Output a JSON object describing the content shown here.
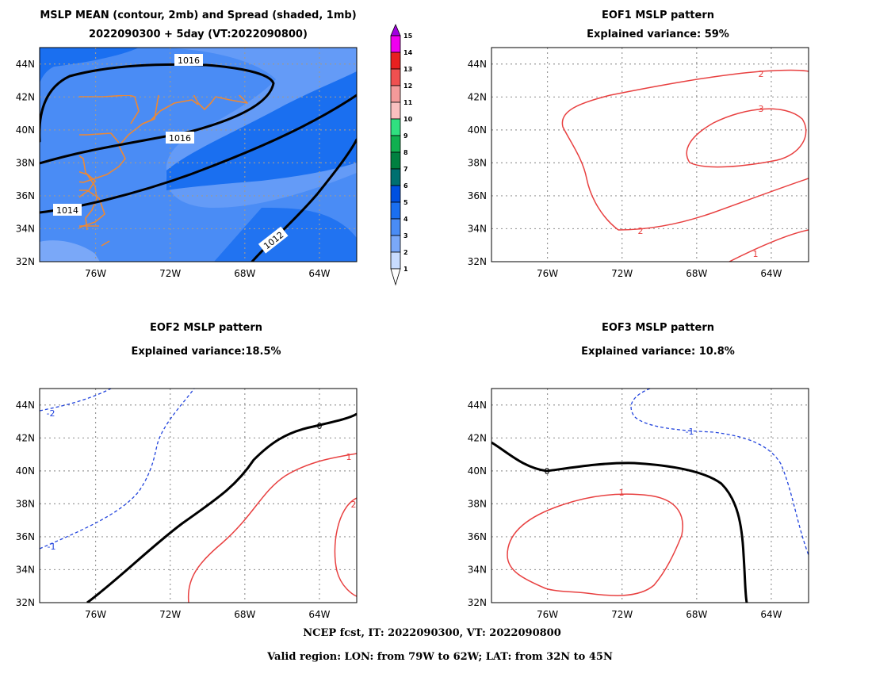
{
  "panels": [
    {
      "title1": "MSLP MEAN (contour, 2mb) and Spread (shaded, 1mb)",
      "title2": "2022090300 + 5day (VT:2022090800)",
      "contour_labels": [
        "1016",
        "1016",
        "1014",
        "1012"
      ]
    },
    {
      "title1": "EOF1 MSLP pattern",
      "title2": "Explained variance: 59%",
      "contour_labels": [
        "2",
        "3",
        "2",
        "1"
      ]
    },
    {
      "title1": "EOF2 MSLP pattern",
      "title2": "Explained variance:18.5%",
      "contour_labels": [
        "0",
        "1",
        "2",
        "-2",
        "-1"
      ]
    },
    {
      "title1": "EOF3 MSLP pattern",
      "title2": "Explained variance: 10.8%",
      "contour_labels": [
        "1",
        "0",
        "-1"
      ]
    }
  ],
  "map": {
    "lat_ticks": [
      "44N",
      "42N",
      "40N",
      "38N",
      "36N",
      "34N",
      "32N"
    ],
    "lon_ticks": [
      "76W",
      "72W",
      "68W",
      "64W"
    ],
    "lon_range": [
      -79,
      -62
    ],
    "lat_range": [
      32,
      45
    ],
    "coast_color": "#ee8833",
    "grid": "dotted"
  },
  "colorbar": {
    "levels": [
      "15",
      "14",
      "13",
      "12",
      "11",
      "10",
      "9",
      "8",
      "7",
      "6",
      "5",
      "4",
      "3",
      "2",
      "1"
    ],
    "colors": [
      "#a000e0",
      "#f000f0",
      "#e82020",
      "#f05050",
      "#f49a9a",
      "#fac0c0",
      "#30e080",
      "#10b050",
      "#008040",
      "#007070",
      "#0050e0",
      "#1a6ff0",
      "#4a8cf5",
      "#7aa8f8",
      "#c8dcff"
    ]
  },
  "spread_colors": {
    "lvl2": "#7aa8f8",
    "lvl3": "#4a8cf5",
    "lvl4": "#1a6ff0"
  },
  "contour_colors": {
    "positive": "#e84040",
    "negative": "#2244dd",
    "zero": "#000000",
    "mean": "#000000"
  },
  "footer": {
    "line1": "NCEP fcst, IT: 2022090300, VT: 2022090800",
    "line2": "Valid region: LON: from 79W to 62W; LAT: from 32N to 45N"
  }
}
